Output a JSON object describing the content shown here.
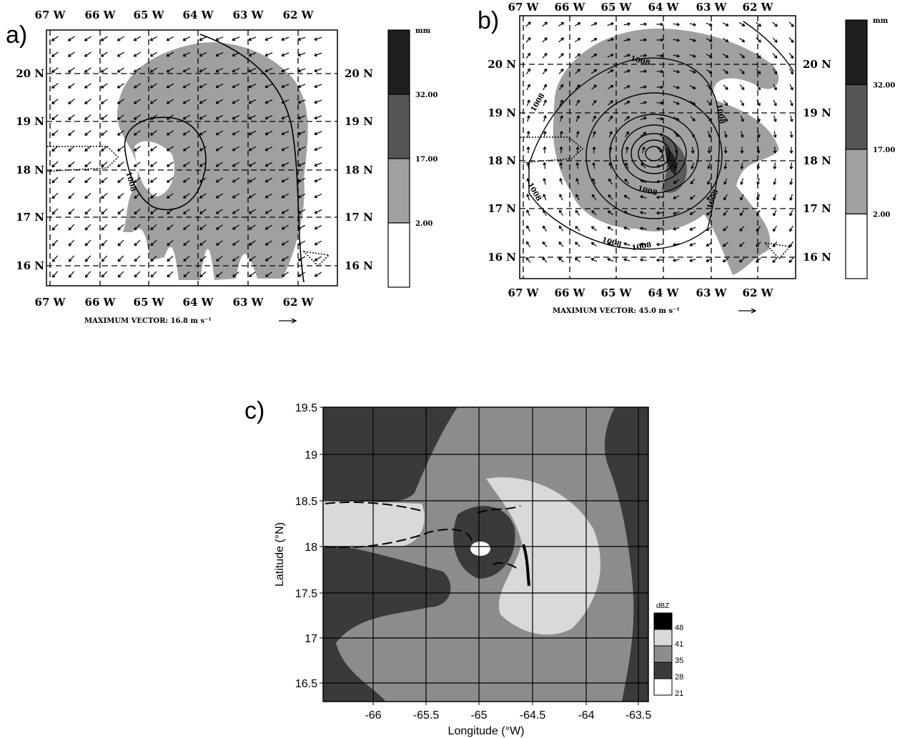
{
  "panels": [
    {
      "label": "a)",
      "x_labels_top": [
        "67 W",
        "66 W",
        "65 W",
        "64 W",
        "63 W",
        "62 W"
      ],
      "x_labels_bottom": [
        "67 W",
        "66 W",
        "65 W",
        "64 W",
        "63 W",
        "62 W"
      ],
      "y_labels_left": [
        "20 N",
        "19 N",
        "18 N",
        "17 N",
        "16 N"
      ],
      "y_labels_right": [
        "20 N",
        "19 N",
        "18 N",
        "17 N",
        "16 N"
      ],
      "contour_labels": [
        "1008"
      ],
      "max_vector": "MAXIMUM VECTOR:  16.8 m s⁻¹",
      "colorbar": {
        "unit": "mm",
        "levels": [
          "32.00",
          "17.00",
          "2.00"
        ]
      }
    },
    {
      "label": "b)",
      "x_labels_top": [
        "67 W",
        "66 W",
        "65 W",
        "64 W",
        "63 W",
        "62 W"
      ],
      "x_labels_bottom": [
        "67 W",
        "66 W",
        "65 W",
        "64 W",
        "63 W",
        "62 W"
      ],
      "y_labels_left": [
        "20 N",
        "19 N",
        "18 N",
        "17 N",
        "16 N"
      ],
      "y_labels_right": [
        "20 N",
        "19 N",
        "18 N",
        "17 N",
        "16 N"
      ],
      "contour_labels": [
        "1008",
        "1008",
        "1008",
        "1008",
        "1008",
        "1008",
        "1008",
        "1008"
      ],
      "max_vector": "MAXIMUM VECTOR:  45.0 m s⁻¹",
      "colorbar": {
        "unit": "mm",
        "levels": [
          "32.00",
          "17.00",
          "2.00"
        ]
      }
    },
    {
      "label": "c)",
      "y_ticks": [
        "19.5",
        "19",
        "18.5",
        "18",
        "17.5",
        "17",
        "16.5"
      ],
      "x_ticks": [
        "-66",
        "-65.5",
        "-65",
        "-64.5",
        "-64",
        "-63.5"
      ],
      "x_axis_label": "Longitude (°W)",
      "y_axis_label": "Latitude (°N)",
      "colorbar": {
        "unit": "dBZ",
        "levels": [
          "48",
          "41",
          "35",
          "28",
          "21"
        ]
      }
    }
  ]
}
